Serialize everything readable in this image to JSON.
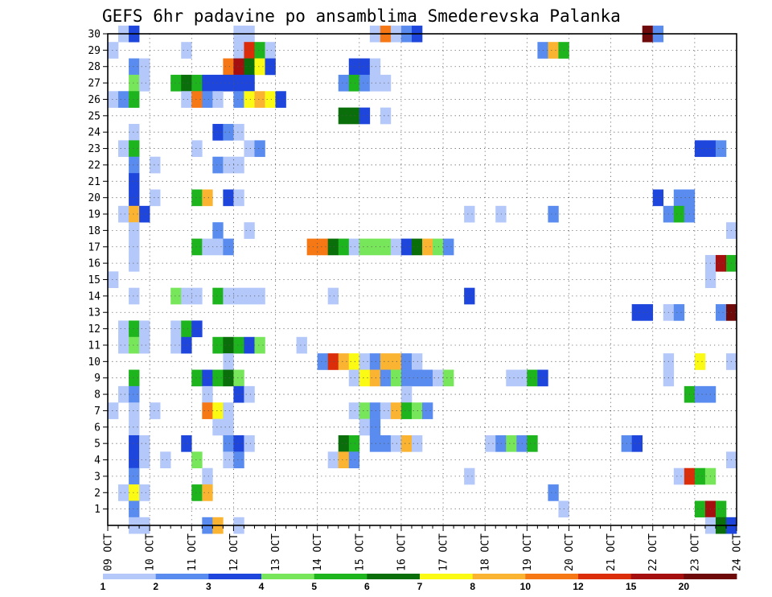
{
  "chart_data": {
    "type": "heatmap",
    "title": "GEFS 6hr padavine po ansamblima Smederevska Palanka",
    "x_tick_labels": [
      "09 OCT",
      "10 OCT",
      "11 OCT",
      "12 OCT",
      "13 OCT",
      "14 OCT",
      "15 OCT",
      "16 OCT",
      "17 OCT",
      "18 OCT",
      "19 OCT",
      "20 OCT",
      "21 OCT",
      "22 OCT",
      "23 OCT",
      "24 OCT"
    ],
    "y_tick_labels": [
      1,
      2,
      3,
      4,
      5,
      6,
      7,
      8,
      9,
      10,
      11,
      12,
      13,
      14,
      15,
      16,
      17,
      18,
      19,
      20,
      21,
      22,
      23,
      24,
      25,
      26,
      27,
      28,
      29,
      30
    ],
    "x_unit": "6-hour step (0 = 09 OCT 00Z, 4 steps per day)",
    "y_unit": "ensemble member",
    "grid": "dotted",
    "legend": {
      "position": "bottom",
      "labels": [
        "1",
        "2",
        "3",
        "4",
        "5",
        "6",
        "7",
        "8",
        "10",
        "12",
        "15",
        "20"
      ],
      "colors": [
        "#b4c8fa",
        "#5a8cf0",
        "#1e46dc",
        "#78e65a",
        "#1eb41e",
        "#0a6e0a",
        "#fafa14",
        "#fab432",
        "#f57814",
        "#dc2d0a",
        "#a50f0f",
        "#6e0a0a"
      ]
    },
    "class_colors": [
      "#b4c8fa",
      "#5a8cf0",
      "#1e46dc",
      "#78e65a",
      "#1eb41e",
      "#0a6e0a",
      "#fafa14",
      "#fab432",
      "#f57814",
      "#dc2d0a",
      "#a50f0f",
      "#6e0a0a"
    ],
    "cells_note": "each row: member + list of [step, class] where class 1..12 maps to legend bins",
    "rows": [
      {
        "member": 30,
        "cells": [
          [
            1,
            1
          ],
          [
            2,
            3
          ],
          [
            12,
            1
          ],
          [
            13,
            1
          ],
          [
            25,
            1
          ],
          [
            26,
            9
          ],
          [
            27,
            1
          ],
          [
            28,
            2
          ],
          [
            29,
            3
          ],
          [
            51,
            12
          ],
          [
            52,
            2
          ]
        ]
      },
      {
        "member": 29,
        "cells": [
          [
            0,
            1
          ],
          [
            7,
            1
          ],
          [
            12,
            1
          ],
          [
            13,
            10
          ],
          [
            14,
            5
          ],
          [
            15,
            1
          ],
          [
            41,
            2
          ],
          [
            42,
            8
          ],
          [
            43,
            5
          ]
        ]
      },
      {
        "member": 28,
        "cells": [
          [
            2,
            2
          ],
          [
            3,
            1
          ],
          [
            11,
            9
          ],
          [
            12,
            11
          ],
          [
            13,
            6
          ],
          [
            14,
            7
          ],
          [
            15,
            3
          ],
          [
            23,
            3
          ],
          [
            24,
            3
          ],
          [
            25,
            1
          ]
        ]
      },
      {
        "member": 27,
        "cells": [
          [
            2,
            4
          ],
          [
            3,
            1
          ],
          [
            6,
            5
          ],
          [
            7,
            6
          ],
          [
            8,
            5
          ],
          [
            9,
            3
          ],
          [
            10,
            3
          ],
          [
            11,
            3
          ],
          [
            12,
            3
          ],
          [
            13,
            3
          ],
          [
            22,
            2
          ],
          [
            23,
            5
          ],
          [
            24,
            2
          ],
          [
            25,
            1
          ],
          [
            26,
            1
          ]
        ]
      },
      {
        "member": 26,
        "cells": [
          [
            0,
            1
          ],
          [
            1,
            2
          ],
          [
            2,
            5
          ],
          [
            7,
            1
          ],
          [
            8,
            9
          ],
          [
            9,
            2
          ],
          [
            10,
            1
          ],
          [
            12,
            2
          ],
          [
            13,
            7
          ],
          [
            14,
            8
          ],
          [
            15,
            7
          ],
          [
            16,
            3
          ]
        ]
      },
      {
        "member": 25,
        "cells": [
          [
            22,
            6
          ],
          [
            23,
            6
          ],
          [
            24,
            3
          ],
          [
            26,
            1
          ]
        ]
      },
      {
        "member": 24,
        "cells": [
          [
            2,
            1
          ],
          [
            10,
            3
          ],
          [
            11,
            2
          ],
          [
            12,
            1
          ]
        ]
      },
      {
        "member": 23,
        "cells": [
          [
            1,
            1
          ],
          [
            2,
            5
          ],
          [
            8,
            1
          ],
          [
            13,
            1
          ],
          [
            14,
            2
          ],
          [
            56,
            3
          ],
          [
            57,
            3
          ],
          [
            58,
            2
          ]
        ]
      },
      {
        "member": 22,
        "cells": [
          [
            2,
            2
          ],
          [
            4,
            1
          ],
          [
            10,
            2
          ],
          [
            11,
            1
          ],
          [
            12,
            1
          ]
        ]
      },
      {
        "member": 21,
        "cells": [
          [
            2,
            3
          ]
        ]
      },
      {
        "member": 20,
        "cells": [
          [
            2,
            3
          ],
          [
            4,
            1
          ],
          [
            8,
            5
          ],
          [
            9,
            8
          ],
          [
            11,
            3
          ],
          [
            12,
            1
          ],
          [
            52,
            3
          ],
          [
            54,
            2
          ],
          [
            55,
            2
          ]
        ]
      },
      {
        "member": 19,
        "cells": [
          [
            1,
            1
          ],
          [
            2,
            8
          ],
          [
            3,
            3
          ],
          [
            34,
            1
          ],
          [
            37,
            1
          ],
          [
            42,
            2
          ],
          [
            53,
            2
          ],
          [
            54,
            5
          ],
          [
            55,
            2
          ]
        ]
      },
      {
        "member": 18,
        "cells": [
          [
            2,
            1
          ],
          [
            10,
            2
          ],
          [
            13,
            1
          ],
          [
            59,
            1
          ]
        ]
      },
      {
        "member": 17,
        "cells": [
          [
            2,
            1
          ],
          [
            8,
            5
          ],
          [
            9,
            1
          ],
          [
            10,
            1
          ],
          [
            11,
            2
          ],
          [
            19,
            9
          ],
          [
            20,
            9
          ],
          [
            21,
            6
          ],
          [
            22,
            5
          ],
          [
            23,
            1
          ],
          [
            24,
            4
          ],
          [
            25,
            4
          ],
          [
            26,
            4
          ],
          [
            27,
            1
          ],
          [
            28,
            3
          ],
          [
            29,
            6
          ],
          [
            30,
            8
          ],
          [
            31,
            4
          ],
          [
            32,
            2
          ]
        ]
      },
      {
        "member": 16,
        "cells": [
          [
            2,
            1
          ],
          [
            57,
            1
          ],
          [
            58,
            11
          ],
          [
            59,
            5
          ]
        ]
      },
      {
        "member": 15,
        "cells": [
          [
            0,
            1
          ],
          [
            57,
            1
          ]
        ]
      },
      {
        "member": 14,
        "cells": [
          [
            2,
            1
          ],
          [
            6,
            4
          ],
          [
            7,
            1
          ],
          [
            8,
            1
          ],
          [
            10,
            5
          ],
          [
            11,
            1
          ],
          [
            12,
            1
          ],
          [
            13,
            1
          ],
          [
            14,
            1
          ],
          [
            21,
            1
          ],
          [
            34,
            3
          ]
        ]
      },
      {
        "member": 13,
        "cells": [
          [
            50,
            3
          ],
          [
            51,
            3
          ],
          [
            53,
            1
          ],
          [
            54,
            2
          ],
          [
            58,
            2
          ],
          [
            59,
            12
          ]
        ]
      },
      {
        "member": 12,
        "cells": [
          [
            1,
            1
          ],
          [
            2,
            5
          ],
          [
            3,
            1
          ],
          [
            6,
            1
          ],
          [
            7,
            5
          ],
          [
            8,
            3
          ]
        ]
      },
      {
        "member": 11,
        "cells": [
          [
            1,
            1
          ],
          [
            2,
            4
          ],
          [
            3,
            1
          ],
          [
            6,
            1
          ],
          [
            7,
            3
          ],
          [
            10,
            5
          ],
          [
            11,
            6
          ],
          [
            12,
            5
          ],
          [
            13,
            3
          ],
          [
            14,
            4
          ],
          [
            18,
            1
          ]
        ]
      },
      {
        "member": 10,
        "cells": [
          [
            11,
            1
          ],
          [
            20,
            2
          ],
          [
            21,
            10
          ],
          [
            22,
            8
          ],
          [
            23,
            7
          ],
          [
            24,
            1
          ],
          [
            25,
            2
          ],
          [
            26,
            8
          ],
          [
            27,
            8
          ],
          [
            28,
            2
          ],
          [
            29,
            1
          ],
          [
            53,
            1
          ],
          [
            56,
            7
          ],
          [
            59,
            1
          ]
        ]
      },
      {
        "member": 9,
        "cells": [
          [
            2,
            5
          ],
          [
            8,
            5
          ],
          [
            9,
            3
          ],
          [
            10,
            5
          ],
          [
            11,
            6
          ],
          [
            12,
            4
          ],
          [
            23,
            1
          ],
          [
            24,
            7
          ],
          [
            25,
            8
          ],
          [
            26,
            2
          ],
          [
            27,
            4
          ],
          [
            28,
            2
          ],
          [
            29,
            2
          ],
          [
            30,
            2
          ],
          [
            31,
            1
          ],
          [
            32,
            4
          ],
          [
            38,
            1
          ],
          [
            39,
            1
          ],
          [
            40,
            5
          ],
          [
            41,
            3
          ],
          [
            53,
            1
          ]
        ]
      },
      {
        "member": 8,
        "cells": [
          [
            1,
            1
          ],
          [
            2,
            2
          ],
          [
            9,
            1
          ],
          [
            12,
            3
          ],
          [
            13,
            1
          ],
          [
            28,
            1
          ],
          [
            55,
            5
          ],
          [
            56,
            2
          ],
          [
            57,
            2
          ]
        ]
      },
      {
        "member": 7,
        "cells": [
          [
            0,
            1
          ],
          [
            2,
            1
          ],
          [
            4,
            1
          ],
          [
            9,
            9
          ],
          [
            10,
            7
          ],
          [
            11,
            1
          ],
          [
            23,
            1
          ],
          [
            24,
            4
          ],
          [
            25,
            2
          ],
          [
            26,
            1
          ],
          [
            27,
            8
          ],
          [
            28,
            5
          ],
          [
            29,
            4
          ],
          [
            30,
            2
          ]
        ]
      },
      {
        "member": 6,
        "cells": [
          [
            2,
            1
          ],
          [
            10,
            1
          ],
          [
            11,
            1
          ],
          [
            24,
            1
          ],
          [
            25,
            2
          ]
        ]
      },
      {
        "member": 5,
        "cells": [
          [
            2,
            3
          ],
          [
            3,
            1
          ],
          [
            7,
            3
          ],
          [
            11,
            2
          ],
          [
            12,
            3
          ],
          [
            13,
            1
          ],
          [
            22,
            6
          ],
          [
            23,
            5
          ],
          [
            25,
            2
          ],
          [
            26,
            2
          ],
          [
            27,
            1
          ],
          [
            28,
            8
          ],
          [
            29,
            1
          ],
          [
            36,
            1
          ],
          [
            37,
            2
          ],
          [
            38,
            4
          ],
          [
            39,
            2
          ],
          [
            40,
            5
          ],
          [
            49,
            2
          ],
          [
            50,
            3
          ]
        ]
      },
      {
        "member": 4,
        "cells": [
          [
            2,
            3
          ],
          [
            3,
            1
          ],
          [
            5,
            1
          ],
          [
            8,
            4
          ],
          [
            11,
            1
          ],
          [
            12,
            2
          ],
          [
            21,
            1
          ],
          [
            22,
            8
          ],
          [
            23,
            2
          ],
          [
            59,
            1
          ]
        ]
      },
      {
        "member": 3,
        "cells": [
          [
            2,
            2
          ],
          [
            9,
            1
          ],
          [
            34,
            1
          ],
          [
            54,
            1
          ],
          [
            55,
            10
          ],
          [
            56,
            5
          ],
          [
            57,
            4
          ]
        ]
      },
      {
        "member": 2,
        "cells": [
          [
            1,
            1
          ],
          [
            2,
            7
          ],
          [
            3,
            1
          ],
          [
            8,
            5
          ],
          [
            9,
            8
          ],
          [
            42,
            2
          ]
        ]
      },
      {
        "member": 1,
        "cells": [
          [
            2,
            2
          ],
          [
            43,
            1
          ],
          [
            56,
            5
          ],
          [
            57,
            11
          ],
          [
            58,
            5
          ]
        ]
      },
      {
        "member": 0,
        "cells": [
          [
            2,
            1
          ],
          [
            3,
            1
          ],
          [
            9,
            2
          ],
          [
            10,
            8
          ],
          [
            12,
            1
          ],
          [
            57,
            1
          ],
          [
            58,
            6
          ],
          [
            59,
            3
          ]
        ]
      }
    ]
  }
}
